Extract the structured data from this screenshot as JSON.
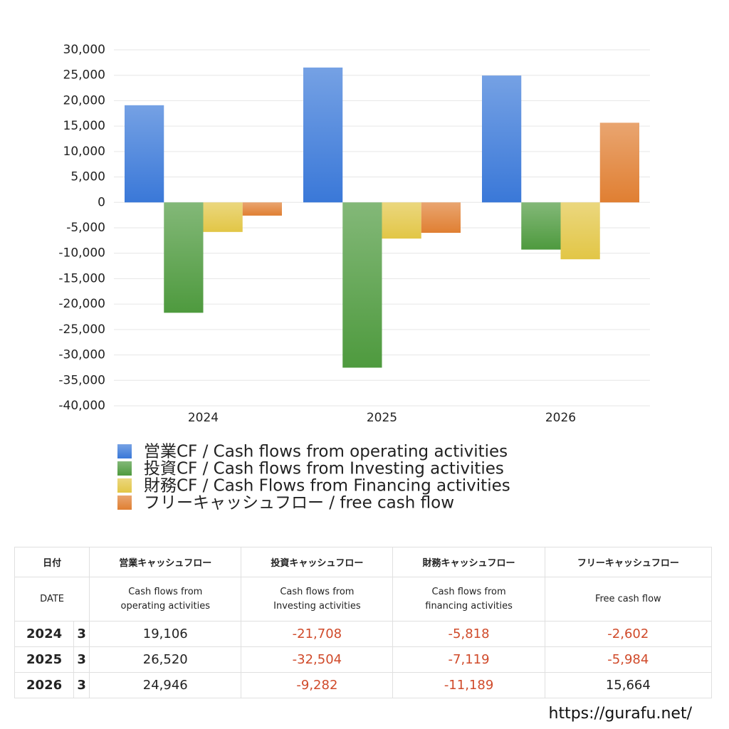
{
  "chart_data": {
    "type": "bar",
    "categories": [
      "2024",
      "2025",
      "2026"
    ],
    "series": [
      {
        "name": "営業CF / Cash flows from operating activities",
        "color": "#3a78d8",
        "values": [
          19106,
          26520,
          24946
        ]
      },
      {
        "name": "投資CF / Cash flows from Investing activities",
        "color": "#4e9a3e",
        "values": [
          -21708,
          -32504,
          -9282
        ]
      },
      {
        "name": "財務CF / Cash Flows from Financing activities",
        "color": "#e2c646",
        "values": [
          -5818,
          -7119,
          -11189
        ]
      },
      {
        "name": "フリーキャッシュフロー / free cash flow",
        "color": "#e07f32",
        "values": [
          -2602,
          -5984,
          15664
        ]
      }
    ],
    "ylim": [
      -40000,
      30000
    ],
    "yticks": [
      {
        "value": -40000,
        "label": "-40,000"
      },
      {
        "value": -35000,
        "label": "-35,000"
      },
      {
        "value": -30000,
        "label": "-30,000"
      },
      {
        "value": -25000,
        "label": "-25,000"
      },
      {
        "value": -20000,
        "label": "-20,000"
      },
      {
        "value": -15000,
        "label": "-15,000"
      },
      {
        "value": -10000,
        "label": "-10,000"
      },
      {
        "value": -5000,
        "label": "-5,000"
      },
      0,
      {
        "value": 5000,
        "label": "5,000"
      },
      {
        "value": 10000,
        "label": "10,000"
      },
      {
        "value": 15000,
        "label": "15,000"
      },
      {
        "value": 20000,
        "label": "20,000"
      },
      {
        "value": 25000,
        "label": "25,000"
      },
      {
        "value": 30000,
        "label": "30,000"
      }
    ],
    "grid": true
  },
  "table": {
    "header": [
      "日付",
      "営業キャッシュフロー",
      "投資キャッシュフロー",
      "財務キャッシュフロー",
      "フリーキャッシュフロー"
    ],
    "subheader": [
      "DATE",
      "Cash flows from\noperating activities",
      "Cash flows from\nInvesting activities",
      "Cash flows from\nfinancing activities",
      "Free cash flow"
    ],
    "rows": [
      [
        "2024",
        "3",
        "19,106",
        "-21,708",
        "-5,818",
        "-2,602"
      ],
      [
        "2025",
        "3",
        "26,520",
        "-32,504",
        "-7,119",
        "-5,984"
      ],
      [
        "2026",
        "3",
        "24,946",
        "-9,282",
        "-11,189",
        "15,664"
      ]
    ]
  },
  "footer": "https://gurafu.net/"
}
